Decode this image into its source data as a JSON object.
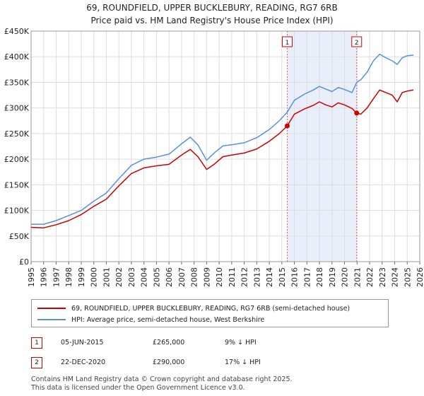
{
  "title_line1": "69, ROUNDFIELD, UPPER BUCKLEBURY, READING, RG7 6RB",
  "title_line2": "Price paid vs. HM Land Registry's House Price Index (HPI)",
  "colors": {
    "property": "#cc0000",
    "hpi": "#5b8fd6",
    "band": "#e8eefa",
    "marker_line": "#e06060",
    "grid": "#dddddd"
  },
  "chart_data": {
    "type": "line",
    "xlim": [
      1995.0,
      2026.0
    ],
    "ylim": [
      0,
      450000
    ],
    "y_ticks": [
      0,
      50000,
      100000,
      150000,
      200000,
      250000,
      300000,
      350000,
      400000,
      450000
    ],
    "y_tick_labels": [
      "£0",
      "£50K",
      "£100K",
      "£150K",
      "£200K",
      "£250K",
      "£300K",
      "£350K",
      "£400K",
      "£450K"
    ],
    "x_ticks": [
      1995,
      1996,
      1997,
      1998,
      1999,
      2000,
      2001,
      2002,
      2003,
      2004,
      2005,
      2006,
      2007,
      2008,
      2009,
      2010,
      2011,
      2012,
      2013,
      2014,
      2015,
      2016,
      2017,
      2018,
      2019,
      2020,
      2021,
      2022,
      2023,
      2024,
      2025,
      2026
    ],
    "x_tick_labels": [
      "1995",
      "1996",
      "1997",
      "1998",
      "1999",
      "2000",
      "2001",
      "2002",
      "2003",
      "2004",
      "2005",
      "2006",
      "2007",
      "2008",
      "2009",
      "2010",
      "2011",
      "2012",
      "2013",
      "2014",
      "2015",
      "2016",
      "2017",
      "2018",
      "2019",
      "2020",
      "2021",
      "2022",
      "2023",
      "2024",
      "2025",
      "2026"
    ],
    "shaded_band": [
      2015.43,
      2020.97
    ],
    "series": [
      {
        "name": "69, ROUNDFIELD, UPPER BUCKLEBURY, READING, RG7 6RB (semi-detached house)",
        "points": [
          [
            1995.0,
            67000
          ],
          [
            1996.0,
            66000
          ],
          [
            1997.0,
            72000
          ],
          [
            1998.0,
            80000
          ],
          [
            1999.0,
            92000
          ],
          [
            2000.0,
            108000
          ],
          [
            2001.0,
            122000
          ],
          [
            2002.0,
            148000
          ],
          [
            2003.0,
            172000
          ],
          [
            2004.0,
            183000
          ],
          [
            2005.0,
            187000
          ],
          [
            2006.0,
            190000
          ],
          [
            2007.0,
            208000
          ],
          [
            2007.7,
            219000
          ],
          [
            2008.3,
            205000
          ],
          [
            2009.0,
            180000
          ],
          [
            2009.6,
            190000
          ],
          [
            2010.3,
            205000
          ],
          [
            2011.0,
            208000
          ],
          [
            2012.0,
            212000
          ],
          [
            2013.0,
            220000
          ],
          [
            2014.0,
            235000
          ],
          [
            2014.8,
            250000
          ],
          [
            2015.43,
            265000
          ],
          [
            2016.0,
            288000
          ],
          [
            2016.8,
            298000
          ],
          [
            2017.5,
            305000
          ],
          [
            2018.0,
            312000
          ],
          [
            2018.5,
            306000
          ],
          [
            2019.0,
            302000
          ],
          [
            2019.5,
            310000
          ],
          [
            2020.0,
            306000
          ],
          [
            2020.6,
            299000
          ],
          [
            2020.97,
            290000
          ],
          [
            2021.3,
            288000
          ],
          [
            2021.8,
            300000
          ],
          [
            2022.3,
            318000
          ],
          [
            2022.8,
            335000
          ],
          [
            2023.3,
            330000
          ],
          [
            2023.8,
            325000
          ],
          [
            2024.2,
            312000
          ],
          [
            2024.6,
            330000
          ],
          [
            2025.0,
            333000
          ],
          [
            2025.5,
            335000
          ]
        ]
      },
      {
        "name": "HPI: Average price, semi-detached house, West Berkshire",
        "points": [
          [
            1995.0,
            73000
          ],
          [
            1996.0,
            73000
          ],
          [
            1997.0,
            80000
          ],
          [
            1998.0,
            90000
          ],
          [
            1999.0,
            100000
          ],
          [
            2000.0,
            118000
          ],
          [
            2001.0,
            134000
          ],
          [
            2002.0,
            162000
          ],
          [
            2003.0,
            188000
          ],
          [
            2004.0,
            200000
          ],
          [
            2005.0,
            204000
          ],
          [
            2006.0,
            210000
          ],
          [
            2007.0,
            230000
          ],
          [
            2007.7,
            243000
          ],
          [
            2008.3,
            228000
          ],
          [
            2009.0,
            198000
          ],
          [
            2009.6,
            212000
          ],
          [
            2010.3,
            226000
          ],
          [
            2011.0,
            228000
          ],
          [
            2012.0,
            232000
          ],
          [
            2013.0,
            242000
          ],
          [
            2014.0,
            258000
          ],
          [
            2014.8,
            275000
          ],
          [
            2015.43,
            292000
          ],
          [
            2016.0,
            315000
          ],
          [
            2016.8,
            327000
          ],
          [
            2017.5,
            335000
          ],
          [
            2018.0,
            342000
          ],
          [
            2018.5,
            337000
          ],
          [
            2019.0,
            332000
          ],
          [
            2019.5,
            340000
          ],
          [
            2020.0,
            336000
          ],
          [
            2020.6,
            330000
          ],
          [
            2020.97,
            350000
          ],
          [
            2021.3,
            355000
          ],
          [
            2021.8,
            370000
          ],
          [
            2022.3,
            392000
          ],
          [
            2022.8,
            405000
          ],
          [
            2023.3,
            398000
          ],
          [
            2023.8,
            392000
          ],
          [
            2024.2,
            385000
          ],
          [
            2024.6,
            398000
          ],
          [
            2025.0,
            402000
          ],
          [
            2025.5,
            403000
          ]
        ]
      }
    ],
    "sales": [
      {
        "label": "1",
        "x": 2015.43,
        "y": 265000
      },
      {
        "label": "2",
        "x": 2020.97,
        "y": 290000
      }
    ]
  },
  "legend": {
    "property": "69, ROUNDFIELD, UPPER BUCKLEBURY, READING, RG7 6RB (semi-detached house)",
    "hpi": "HPI: Average price, semi-detached house, West Berkshire"
  },
  "transactions": [
    {
      "num": "1",
      "date": "05-JUN-2015",
      "price": "£265,000",
      "delta": "9% ↓ HPI"
    },
    {
      "num": "2",
      "date": "22-DEC-2020",
      "price": "£290,000",
      "delta": "17% ↓ HPI"
    }
  ],
  "footer_line1": "Contains HM Land Registry data © Crown copyright and database right 2025.",
  "footer_line2": "This data is licensed under the Open Government Licence v3.0."
}
